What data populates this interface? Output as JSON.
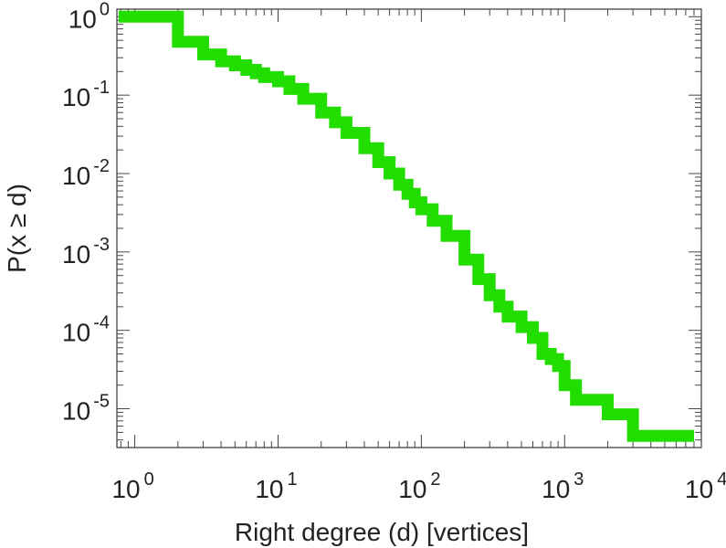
{
  "chart_data": {
    "type": "line",
    "step": true,
    "xlabel": "Right degree (d) [vertices]",
    "ylabel": "P(x ≥ d)",
    "xscale": "log",
    "yscale": "log",
    "xlim": [
      0.75,
      9000
    ],
    "ylim": [
      3.2e-06,
      1.25
    ],
    "grid": false,
    "x_ticks": [
      {
        "base": "10",
        "exp": "0",
        "value": 1
      },
      {
        "base": "10",
        "exp": "1",
        "value": 10
      },
      {
        "base": "10",
        "exp": "2",
        "value": 100
      },
      {
        "base": "10",
        "exp": "3",
        "value": 1000
      },
      {
        "base": "10",
        "exp": "4",
        "value": 10000
      }
    ],
    "y_ticks": [
      {
        "base": "10",
        "exp": "0",
        "value": 1
      },
      {
        "base": "10",
        "exp": "-1",
        "value": 0.1
      },
      {
        "base": "10",
        "exp": "-2",
        "value": 0.01
      },
      {
        "base": "10",
        "exp": "-3",
        "value": 0.001
      },
      {
        "base": "10",
        "exp": "-4",
        "value": 0.0001
      },
      {
        "base": "10",
        "exp": "-5",
        "value": 1e-05
      }
    ],
    "series": [
      {
        "color": "#22dd00",
        "x": [
          1,
          2,
          3,
          4,
          5,
          6,
          7,
          8,
          10,
          12,
          15,
          20,
          25,
          30,
          40,
          50,
          60,
          70,
          80,
          90,
          100,
          120,
          150,
          200,
          250,
          300,
          350,
          400,
          500,
          600,
          700,
          800,
          900,
          1000,
          1200,
          1500,
          2000,
          3000,
          5000,
          8000
        ],
        "y": [
          1.0,
          0.48,
          0.33,
          0.27,
          0.24,
          0.21,
          0.19,
          0.17,
          0.15,
          0.12,
          0.09,
          0.06,
          0.045,
          0.033,
          0.021,
          0.014,
          0.01,
          0.0072,
          0.0055,
          0.0043,
          0.0035,
          0.0025,
          0.0016,
          0.0008,
          0.00045,
          0.00028,
          0.0002,
          0.00015,
          0.00011,
          8e-05,
          5e-05,
          4.3e-05,
          3.5e-05,
          2e-05,
          1.3e-05,
          1.3e-05,
          8.5e-06,
          4.5e-06,
          4.5e-06,
          4.5e-06
        ]
      }
    ]
  }
}
